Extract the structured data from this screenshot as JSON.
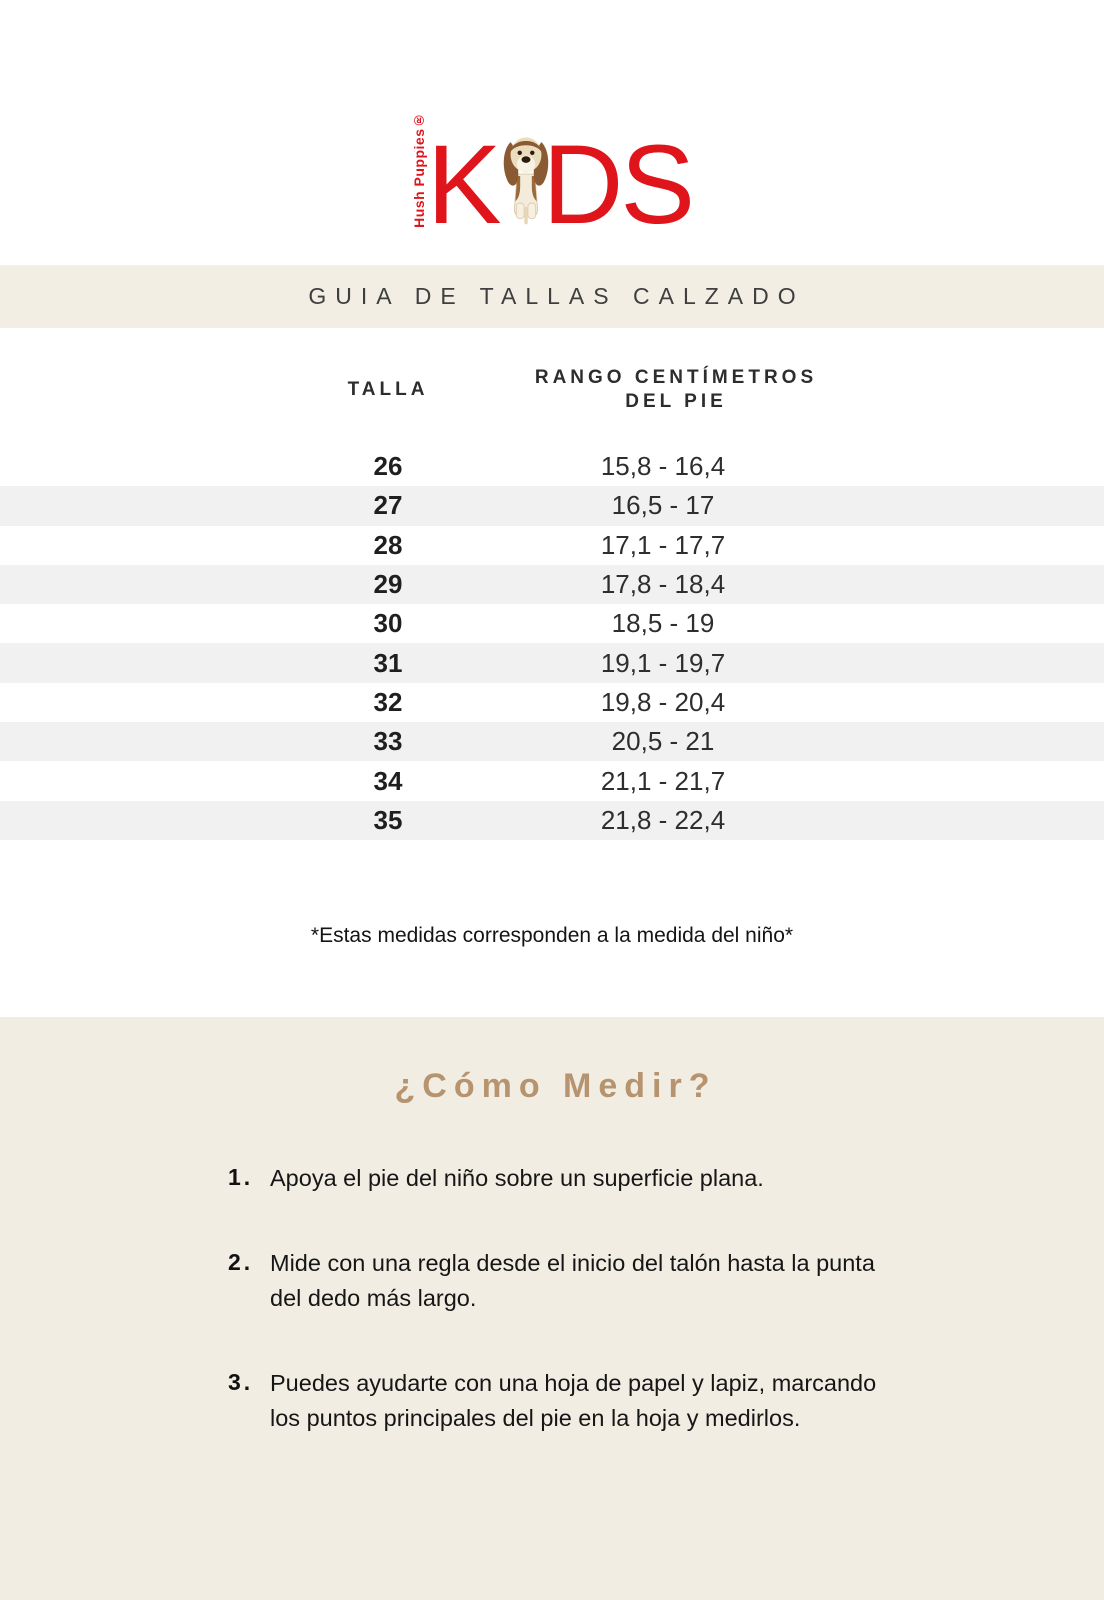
{
  "logo": {
    "brand_vertical": "Hush Puppies®",
    "k": "K",
    "ds": "DS",
    "dog_icon": "basset-hound-dog-icon",
    "red": "#e0151c"
  },
  "header": {
    "title": "GUIA DE TALLAS CALZADO"
  },
  "size_table": {
    "col_talla": "TALLA",
    "col_rango_line1": "RANGO CENTÍMETROS",
    "col_rango_line2": "DEL PIE",
    "rows": [
      {
        "talla": "26",
        "rango": "15,8 - 16,4"
      },
      {
        "talla": "27",
        "rango": "16,5 - 17"
      },
      {
        "talla": "28",
        "rango": "17,1 - 17,7"
      },
      {
        "talla": "29",
        "rango": "17,8 - 18,4"
      },
      {
        "talla": "30",
        "rango": "18,5 - 19"
      },
      {
        "talla": "31",
        "rango": "19,1 - 19,7"
      },
      {
        "talla": "32",
        "rango": "19,8 - 20,4"
      },
      {
        "talla": "33",
        "rango": "20,5 - 21"
      },
      {
        "talla": "34",
        "rango": "21,1 - 21,7"
      },
      {
        "talla": "35",
        "rango": "21,8 - 22,4"
      }
    ]
  },
  "footnote": "*Estas medidas corresponden a la medida del niño*",
  "how_to": {
    "title": "¿Cómo Medir?",
    "steps": [
      {
        "num": "1.",
        "text": "Apoya el pie del niño sobre un superficie plana."
      },
      {
        "num": "2.",
        "text": "Mide con una regla desde el inicio del talón hasta la punta del dedo más largo."
      },
      {
        "num": "3.",
        "text": "Puedes ayudarte con una hoja de papel y lapiz, marcando los puntos principales del pie en la hoja y medirlos."
      }
    ]
  },
  "colors": {
    "logo_red": "#e0151c",
    "band_cream": "#f3eee4",
    "section_cream": "#f2ede3",
    "row_stripe": "#f1f1f1",
    "heading_tan": "#b6946f"
  }
}
